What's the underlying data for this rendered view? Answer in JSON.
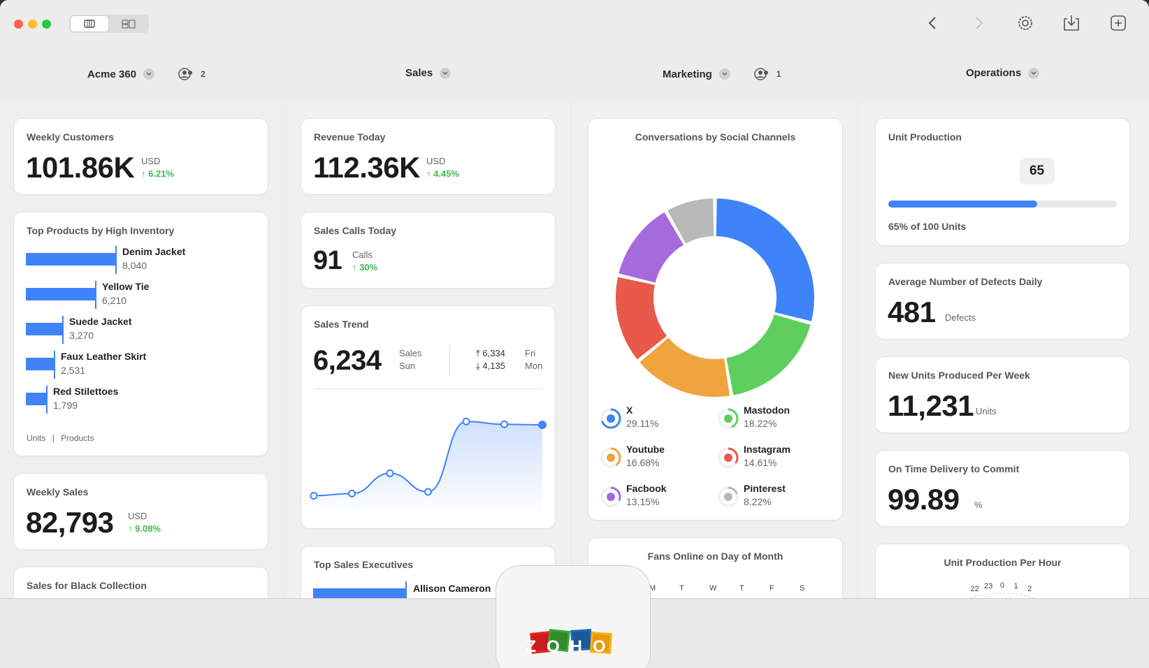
{
  "tabs": [
    {
      "label": "Acme 360",
      "users": "2"
    },
    {
      "label": "Sales",
      "users": ""
    },
    {
      "label": "Marketing",
      "users": "1"
    },
    {
      "label": "Operations",
      "users": ""
    }
  ],
  "col1": {
    "weekly_customers": {
      "title": "Weekly Customers",
      "value": "101.86K",
      "unit": "USD",
      "change": "6.21%"
    },
    "top_products": {
      "title": "Top Products by High Inventory",
      "footer_units": "Units",
      "footer_sep": "|",
      "footer_products": "Products",
      "chart_data": {
        "type": "bar",
        "categories": [
          "Denim Jacket",
          "Yellow Tie",
          "Suede Jacket",
          "Faux Leather Skirt",
          "Red Stilettoes"
        ],
        "values": [
          8040,
          6210,
          3270,
          2531,
          1799
        ],
        "value_labels": [
          "8,040",
          "6,210",
          "3,270",
          "2,531",
          "1,799"
        ]
      }
    },
    "weekly_sales": {
      "title": "Weekly Sales",
      "value": "82,793",
      "unit": "USD",
      "change": "9.08%"
    },
    "black_collection": {
      "title": "Sales for Black Collection"
    }
  },
  "col2": {
    "revenue_today": {
      "title": "Revenue Today",
      "value": "112.36K",
      "unit": "USD",
      "change": "4.45%"
    },
    "sales_calls": {
      "title": "Sales Calls Today",
      "value": "91",
      "unit": "Calls",
      "change": "30%"
    },
    "sales_trend": {
      "title": "Sales Trend",
      "value": "6,234",
      "label1": "Sales",
      "label2": "Sun",
      "high": "6,334",
      "high_day": "Fri",
      "low": "4,135",
      "low_day": "Mon",
      "chart_data": {
        "type": "area",
        "values": [
          4135,
          4200,
          4800,
          4250,
          6334,
          6250,
          6234
        ]
      }
    },
    "top_execs": {
      "title": "Top Sales Executives",
      "first_name": "Allison Cameron"
    }
  },
  "col3": {
    "conversations": {
      "title": "Conversations by Social Channels",
      "chart_data": {
        "type": "pie",
        "labels": [
          "X",
          "Mastodon",
          "Youtube",
          "Instagram",
          "Facbook",
          "Pinterest"
        ],
        "values": [
          29.11,
          18.22,
          16.68,
          14.61,
          13.15,
          8.22
        ],
        "display": [
          "29.11%",
          "18.22%",
          "16.68%",
          "14.61%",
          "13.15%",
          "8.22%"
        ],
        "colors": [
          "#3f83f8",
          "#5ecf5e",
          "#f0a440",
          "#e9594a",
          "#a56bdc",
          "#b8b8b8"
        ]
      }
    },
    "fans_online": {
      "title": "Fans Online on Day of Month",
      "days": [
        "M",
        "T",
        "W",
        "T",
        "F",
        "S"
      ]
    }
  },
  "col4": {
    "unit_production": {
      "title": "Unit Production",
      "bubble": "65",
      "progress": 0.65,
      "caption": "65% of 100 Units"
    },
    "defects": {
      "title": "Average Number of Defects Daily",
      "value": "481",
      "unit": "Defects"
    },
    "new_units": {
      "title": "New Units Produced Per Week",
      "value": "11,231",
      "unit": "Units"
    },
    "on_time": {
      "title": "On Time Delivery to Commit",
      "value": "99.89",
      "unit": "%"
    },
    "per_hour": {
      "title": "Unit Production Per Hour",
      "ticks": [
        "22",
        "23",
        "0",
        "1",
        "2"
      ]
    }
  },
  "logo": {
    "text": "ZOHO"
  },
  "colors": {
    "accent": "#3f83f8",
    "positive": "#3fb950"
  }
}
